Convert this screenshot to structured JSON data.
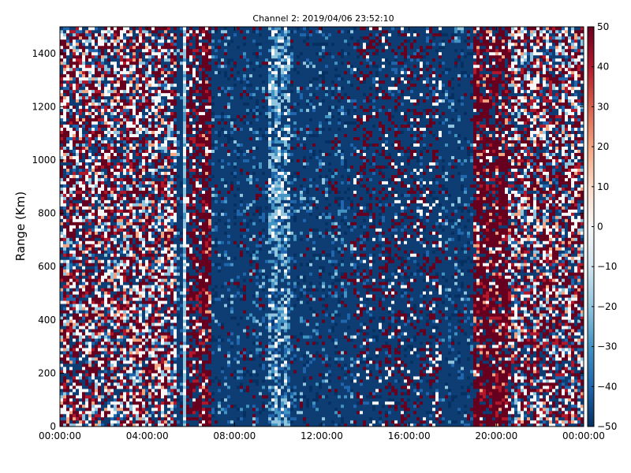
{
  "chart_data": {
    "type": "heatmap",
    "title": "Channel 2: 2019/04/06 23:52:10",
    "xlabel": "",
    "ylabel": "Range (Km)",
    "xlim_hours": [
      0,
      24
    ],
    "ylim": [
      0,
      1500
    ],
    "x_ticks": [
      {
        "hour": 0,
        "label": "00:00:00"
      },
      {
        "hour": 4,
        "label": "04:00:00"
      },
      {
        "hour": 8,
        "label": "08:00:00"
      },
      {
        "hour": 12,
        "label": "12:00:00"
      },
      {
        "hour": 16,
        "label": "16:00:00"
      },
      {
        "hour": 20,
        "label": "20:00:00"
      },
      {
        "hour": 24,
        "label": "00:00:00"
      }
    ],
    "y_ticks": [
      {
        "value": 0,
        "label": "0"
      },
      {
        "value": 200,
        "label": "200"
      },
      {
        "value": 400,
        "label": "400"
      },
      {
        "value": 600,
        "label": "600"
      },
      {
        "value": 800,
        "label": "800"
      },
      {
        "value": 1000,
        "label": "1000"
      },
      {
        "value": 1200,
        "label": "1200"
      },
      {
        "value": 1400,
        "label": "1400"
      }
    ],
    "colorbar": {
      "range": [
        -50,
        50
      ],
      "colormap": "RdBu_r",
      "ticks": [
        {
          "value": 50,
          "label": "50"
        },
        {
          "value": 40,
          "label": "40"
        },
        {
          "value": 30,
          "label": "30"
        },
        {
          "value": 20,
          "label": "20"
        },
        {
          "value": 10,
          "label": "10"
        },
        {
          "value": 0,
          "label": "0"
        },
        {
          "value": -10,
          "label": "−10"
        },
        {
          "value": -20,
          "label": "−20"
        },
        {
          "value": -30,
          "label": "−30"
        },
        {
          "value": -40,
          "label": "−40"
        },
        {
          "value": -50,
          "label": "−50"
        }
      ]
    },
    "grid": false,
    "time_profile": [
      {
        "start": 0.0,
        "end": 5.3,
        "pattern": "mixed"
      },
      {
        "start": 5.3,
        "end": 5.6,
        "pattern": "blue"
      },
      {
        "start": 5.6,
        "end": 5.8,
        "pattern": "white"
      },
      {
        "start": 5.8,
        "end": 6.5,
        "pattern": "red-blue"
      },
      {
        "start": 6.5,
        "end": 7.0,
        "pattern": "dark-red"
      },
      {
        "start": 7.0,
        "end": 9.5,
        "pattern": "blue"
      },
      {
        "start": 9.5,
        "end": 10.6,
        "pattern": "light-blue"
      },
      {
        "start": 10.6,
        "end": 13.4,
        "pattern": "blue"
      },
      {
        "start": 13.4,
        "end": 17.5,
        "pattern": "blue-red"
      },
      {
        "start": 17.5,
        "end": 19.0,
        "pattern": "blue"
      },
      {
        "start": 19.0,
        "end": 20.5,
        "pattern": "dark-red"
      },
      {
        "start": 20.5,
        "end": 24.0,
        "pattern": "mixed"
      }
    ]
  }
}
